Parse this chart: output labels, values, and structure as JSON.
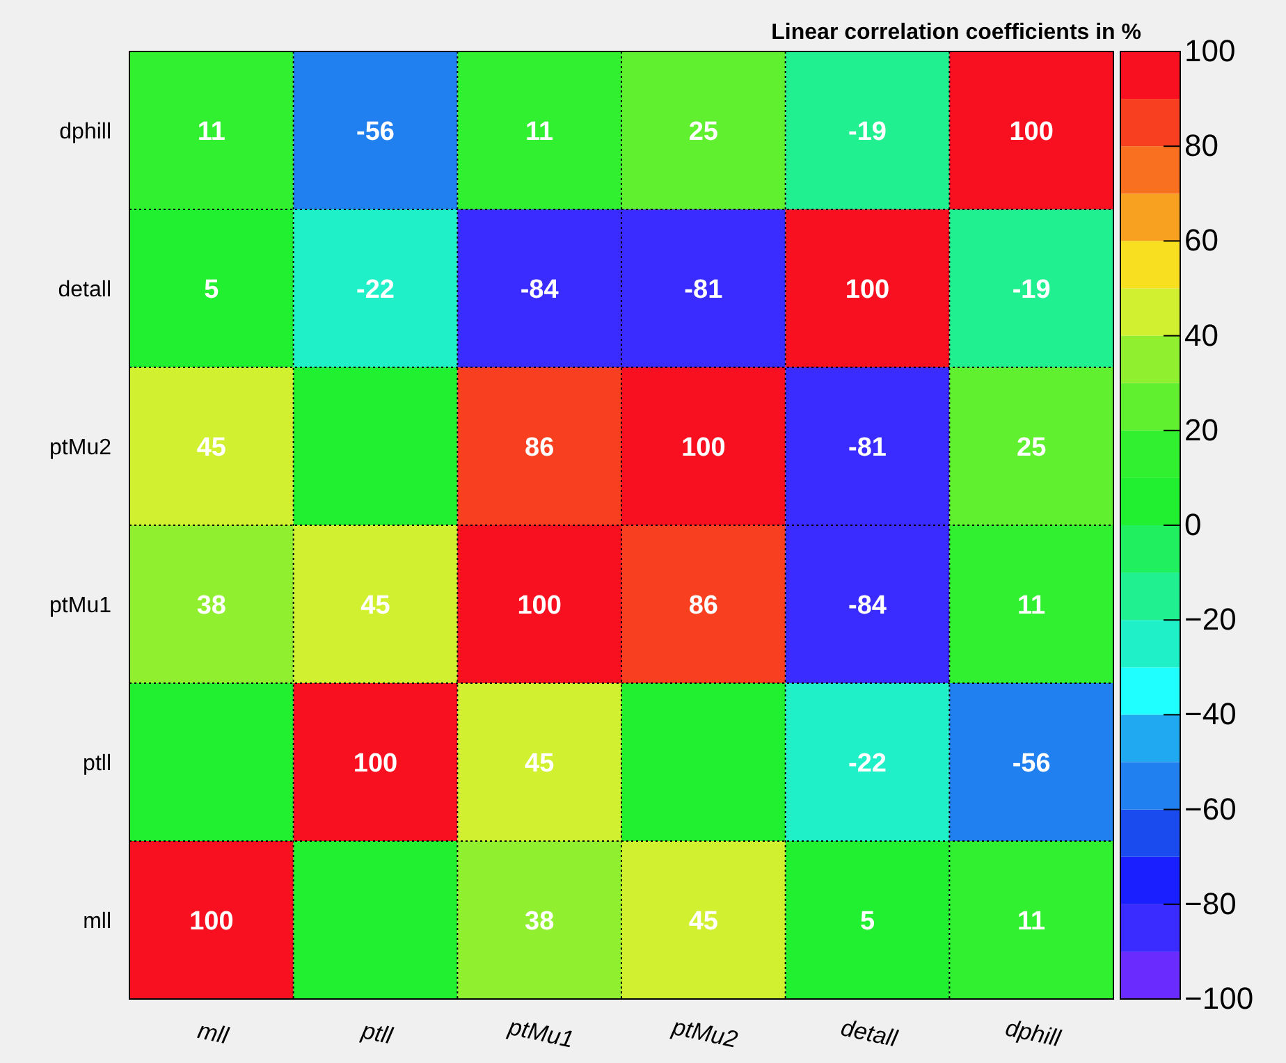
{
  "chart_data": {
    "type": "heatmap",
    "title": "Linear correlation coefficients in %",
    "categories": [
      "mll",
      "ptll",
      "ptMu1",
      "ptMu2",
      "detall",
      "dphill"
    ],
    "y_categories": [
      "dphill",
      "detall",
      "ptMu2",
      "ptMu1",
      "ptll",
      "mll"
    ],
    "cells": [
      [
        11,
        -56,
        11,
        25,
        -19,
        100
      ],
      [
        5,
        -22,
        -84,
        -81,
        100,
        -19
      ],
      [
        45,
        0,
        86,
        100,
        -81,
        25
      ],
      [
        38,
        45,
        100,
        86,
        -84,
        11
      ],
      [
        0,
        100,
        45,
        0,
        -22,
        -56
      ],
      [
        100,
        0,
        38,
        45,
        5,
        11
      ]
    ],
    "cell_labels": [
      [
        "11",
        "-56",
        "11",
        "25",
        "-19",
        "100"
      ],
      [
        "5",
        "-22",
        "-84",
        "-81",
        "100",
        "-19"
      ],
      [
        "45",
        null,
        "86",
        "100",
        "-81",
        "25"
      ],
      [
        "38",
        "45",
        "100",
        "86",
        "-84",
        "11"
      ],
      [
        null,
        "100",
        "45",
        null,
        "-22",
        "-56"
      ],
      [
        "100",
        null,
        "38",
        "45",
        "5",
        "11"
      ]
    ],
    "clim": [
      -100,
      100
    ],
    "cticks": [
      -100,
      -80,
      -60,
      -40,
      -20,
      0,
      20,
      40,
      60,
      80,
      100
    ],
    "grid": true
  }
}
